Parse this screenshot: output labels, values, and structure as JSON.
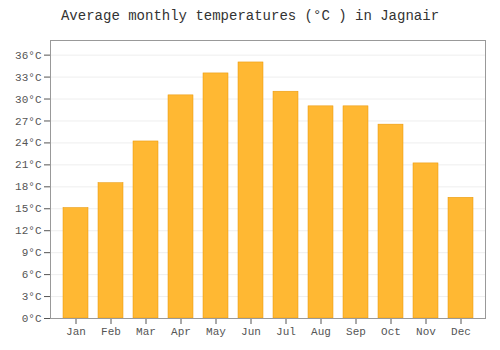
{
  "chart_data": {
    "type": "bar",
    "title": "Average monthly temperatures (°C ) in Jagnair",
    "categories": [
      "Jan",
      "Feb",
      "Mar",
      "Apr",
      "May",
      "Jun",
      "Jul",
      "Aug",
      "Sep",
      "Oct",
      "Nov",
      "Dec"
    ],
    "values": [
      15.1,
      18.5,
      24.2,
      30.5,
      33.5,
      35.0,
      31.0,
      29.0,
      29.0,
      26.5,
      21.2,
      16.5
    ],
    "color": "#FFB833",
    "ylim": [
      0,
      38
    ],
    "yticks": [
      {
        "value": 0,
        "label": "0°C"
      },
      {
        "value": 3,
        "label": "3°C"
      },
      {
        "value": 6,
        "label": "6°C"
      },
      {
        "value": 9,
        "label": "9°C"
      },
      {
        "value": 12,
        "label": "12°C"
      },
      {
        "value": 15,
        "label": "15°C"
      },
      {
        "value": 18,
        "label": "18°C"
      },
      {
        "value": 21,
        "label": "21°C"
      },
      {
        "value": 24,
        "label": "24°C"
      },
      {
        "value": 27,
        "label": "27°C"
      },
      {
        "value": 30,
        "label": "30°C"
      },
      {
        "value": 33,
        "label": "33°C"
      },
      {
        "value": 36,
        "label": "36°C"
      }
    ],
    "grid": true
  }
}
